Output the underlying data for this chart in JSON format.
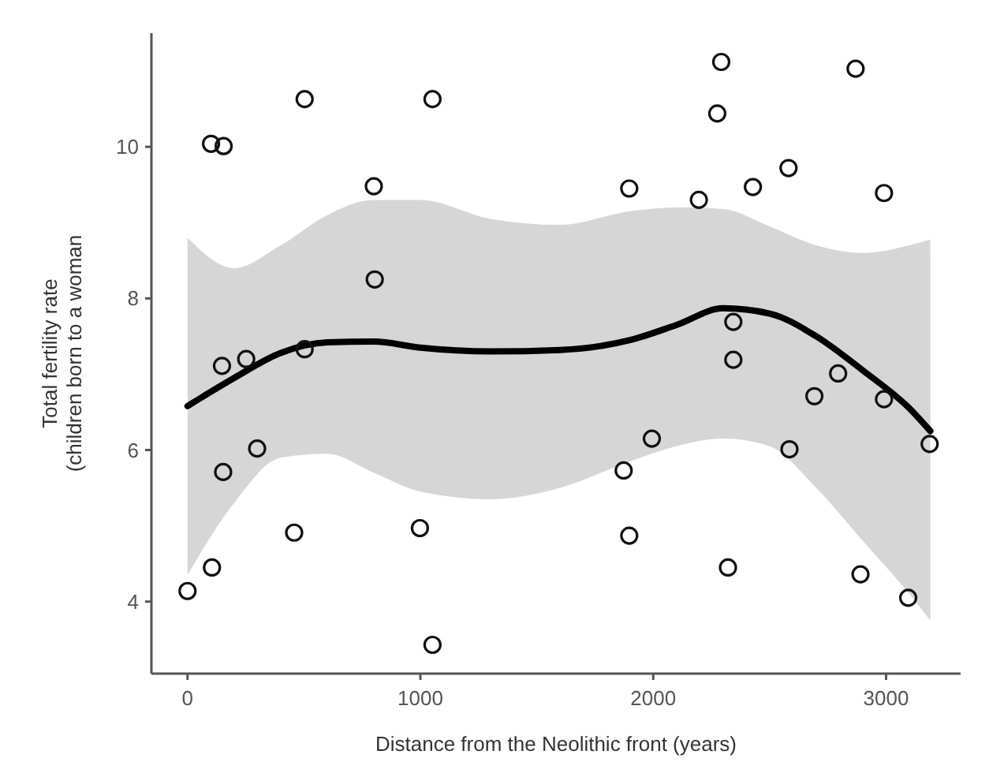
{
  "chart_data": {
    "type": "scatter",
    "xlabel": "Distance from the Neolithic front (years)",
    "ylabel": "Total fertility rate\n(children born to a woman",
    "xlim": [
      -155,
      3320
    ],
    "ylim": [
      3.05,
      11.5
    ],
    "xticks": [
      0,
      1000,
      2000,
      3000
    ],
    "yticks": [
      4,
      6,
      8,
      10
    ],
    "grid": false,
    "series": [
      {
        "color": "#111111",
        "marker": "circle",
        "x": [
          0,
          105,
          153,
          299,
          458,
          998,
          1052,
          148,
          252,
          503,
          503,
          1052,
          101,
          155,
          800,
          804,
          2292,
          2869,
          2275,
          1897,
          2196,
          2428,
          2581,
          2991,
          2344,
          2344,
          2692,
          2794,
          2991,
          3187,
          1994,
          1873,
          2585,
          1897,
          2321,
          2890,
          3095
        ],
        "values": [
          4.14,
          4.45,
          5.71,
          6.02,
          4.91,
          4.97,
          3.43,
          7.11,
          7.2,
          7.33,
          10.63,
          10.63,
          10.04,
          10.01,
          9.48,
          8.25,
          11.12,
          11.03,
          10.44,
          9.45,
          9.3,
          9.47,
          9.72,
          9.39,
          7.69,
          7.19,
          6.71,
          7.01,
          6.67,
          6.08,
          6.15,
          5.73,
          6.01,
          4.87,
          4.45,
          4.36,
          4.05
        ]
      },
      {
        "type": "line",
        "color": "#000000",
        "line_style": "solid",
        "x": [
          0,
          200,
          400,
          600,
          800,
          1000,
          1300,
          1600,
          1900,
          2100,
          2300,
          2500,
          2700,
          2900,
          3100,
          3190
        ],
        "values": [
          6.58,
          6.95,
          7.28,
          7.42,
          7.43,
          7.35,
          7.3,
          7.32,
          7.45,
          7.65,
          7.87,
          7.8,
          7.5,
          7.05,
          6.55,
          6.25
        ],
        "lower": [
          4.35,
          5.3,
          5.9,
          5.95,
          5.7,
          5.45,
          5.35,
          5.5,
          5.85,
          6.05,
          6.15,
          6.05,
          5.5,
          4.8,
          4.1,
          3.75
        ],
        "upper": [
          8.8,
          8.4,
          8.7,
          9.1,
          9.3,
          9.3,
          9.05,
          8.97,
          9.15,
          9.2,
          9.18,
          8.95,
          8.7,
          8.6,
          8.7,
          8.78
        ]
      }
    ]
  }
}
